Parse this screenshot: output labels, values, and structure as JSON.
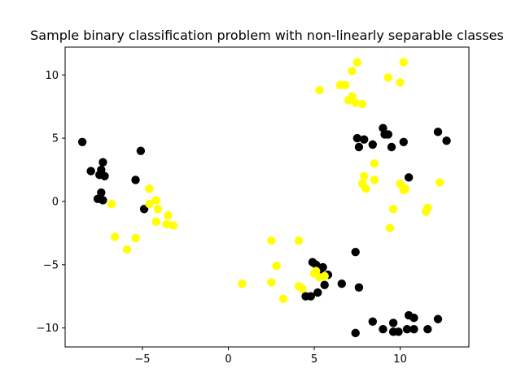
{
  "chart_data": {
    "type": "scatter",
    "title": "Sample binary classification problem with non-linearly separable classes",
    "xlabel": "",
    "ylabel": "",
    "xlim": [
      -9.5,
      14.0
    ],
    "ylim": [
      -11.5,
      12.2
    ],
    "xticks": [
      -5,
      0,
      5,
      10
    ],
    "yticks": [
      -10,
      -5,
      0,
      5,
      10
    ],
    "grid": false,
    "series": [
      {
        "color": "#000000",
        "points": [
          [
            -8.5,
            4.7
          ],
          [
            -8.0,
            2.4
          ],
          [
            -7.5,
            2.1
          ],
          [
            -7.4,
            2.5
          ],
          [
            -7.3,
            3.1
          ],
          [
            -7.2,
            2.0
          ],
          [
            -7.4,
            0.7
          ],
          [
            -7.6,
            0.2
          ],
          [
            -7.3,
            0.1
          ],
          [
            -5.1,
            4.0
          ],
          [
            -5.4,
            1.7
          ],
          [
            -4.9,
            -0.6
          ],
          [
            7.5,
            5.0
          ],
          [
            7.6,
            4.3
          ],
          [
            7.9,
            4.9
          ],
          [
            8.4,
            4.5
          ],
          [
            9.0,
            5.8
          ],
          [
            9.1,
            5.3
          ],
          [
            9.3,
            5.3
          ],
          [
            9.5,
            4.3
          ],
          [
            10.2,
            4.7
          ],
          [
            10.5,
            1.9
          ],
          [
            12.2,
            5.5
          ],
          [
            12.7,
            4.8
          ],
          [
            4.9,
            -4.8
          ],
          [
            5.1,
            -5.0
          ],
          [
            5.5,
            -5.2
          ],
          [
            5.4,
            -5.8
          ],
          [
            5.8,
            -5.8
          ],
          [
            5.6,
            -6.6
          ],
          [
            5.2,
            -7.2
          ],
          [
            4.5,
            -7.5
          ],
          [
            4.8,
            -7.5
          ],
          [
            6.6,
            -6.5
          ],
          [
            7.4,
            -4.0
          ],
          [
            7.6,
            -6.8
          ],
          [
            7.4,
            -10.4
          ],
          [
            8.4,
            -9.5
          ],
          [
            9.0,
            -10.1
          ],
          [
            9.6,
            -9.6
          ],
          [
            9.6,
            -10.3
          ],
          [
            9.9,
            -10.3
          ],
          [
            10.4,
            -10.1
          ],
          [
            10.5,
            -9.0
          ],
          [
            10.8,
            -9.2
          ],
          [
            10.8,
            -10.1
          ],
          [
            11.6,
            -10.1
          ],
          [
            12.2,
            -9.3
          ]
        ]
      },
      {
        "color": "#ffff00",
        "points": [
          [
            -6.8,
            -0.2
          ],
          [
            -6.6,
            -2.8
          ],
          [
            -5.9,
            -3.8
          ],
          [
            -5.4,
            -2.9
          ],
          [
            -4.6,
            1.0
          ],
          [
            -4.6,
            -0.2
          ],
          [
            -4.2,
            0.1
          ],
          [
            -4.1,
            -0.6
          ],
          [
            -4.2,
            -1.6
          ],
          [
            -3.5,
            -1.1
          ],
          [
            -3.6,
            -1.8
          ],
          [
            -3.2,
            -1.9
          ],
          [
            5.3,
            8.8
          ],
          [
            6.5,
            9.2
          ],
          [
            6.8,
            9.2
          ],
          [
            7.0,
            8.0
          ],
          [
            7.2,
            10.3
          ],
          [
            7.2,
            8.3
          ],
          [
            7.5,
            11.0
          ],
          [
            7.4,
            7.8
          ],
          [
            7.8,
            7.7
          ],
          [
            9.3,
            9.8
          ],
          [
            10.0,
            9.4
          ],
          [
            10.2,
            11.0
          ],
          [
            7.9,
            2.0
          ],
          [
            7.8,
            1.4
          ],
          [
            8.0,
            1.0
          ],
          [
            8.5,
            3.0
          ],
          [
            8.5,
            1.7
          ],
          [
            9.6,
            -0.6
          ],
          [
            9.4,
            -2.1
          ],
          [
            10.0,
            1.4
          ],
          [
            10.2,
            0.9
          ],
          [
            10.3,
            1.0
          ],
          [
            11.5,
            -0.8
          ],
          [
            11.6,
            -0.5
          ],
          [
            12.3,
            1.5
          ],
          [
            0.8,
            -6.5
          ],
          [
            2.5,
            -3.1
          ],
          [
            2.5,
            -6.4
          ],
          [
            2.8,
            -5.1
          ],
          [
            3.2,
            -7.7
          ],
          [
            4.1,
            -3.1
          ],
          [
            4.1,
            -6.7
          ],
          [
            4.3,
            -6.9
          ],
          [
            5.0,
            -5.7
          ],
          [
            5.1,
            -5.5
          ],
          [
            5.3,
            -6.0
          ],
          [
            5.6,
            -5.9
          ]
        ]
      }
    ]
  }
}
